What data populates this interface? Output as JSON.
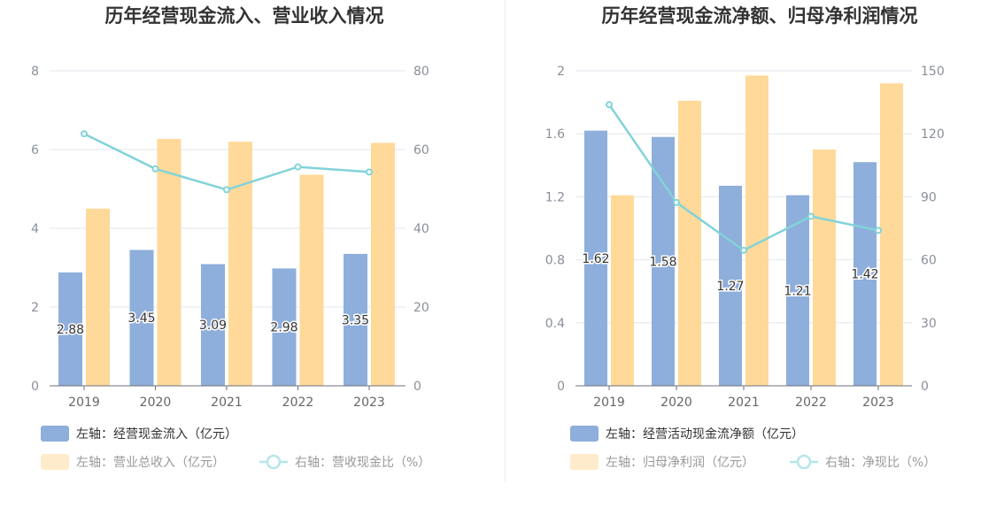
{
  "chart_data": [
    {
      "type": "bar",
      "title": "历年经营现金流入、营业收入情况",
      "categories": [
        "2019",
        "2020",
        "2021",
        "2022",
        "2023"
      ],
      "left_axis": {
        "ylim": [
          0,
          8
        ],
        "ticks": [
          "0",
          "2",
          "4",
          "6",
          "8"
        ]
      },
      "right_axis": {
        "ylim": [
          0,
          80
        ],
        "ticks": [
          "0",
          "20",
          "40",
          "60",
          "80"
        ]
      },
      "series": [
        {
          "name": "左轴：经营现金流入（亿元）",
          "kind": "bar",
          "axis": "left",
          "color": "#8eaedb",
          "values": [
            2.88,
            3.45,
            3.09,
            2.98,
            3.35
          ],
          "labels": [
            "2.88",
            "3.45",
            "3.09",
            "2.98",
            "3.35"
          ]
        },
        {
          "name": "左轴：营业总收入（亿元）",
          "kind": "bar",
          "axis": "left",
          "color": "#ffd99a",
          "values": [
            4.5,
            6.27,
            6.2,
            5.36,
            6.17
          ]
        },
        {
          "name": "右轴：营收现金比（%）",
          "kind": "line",
          "axis": "right",
          "color": "#82d3d8",
          "values": [
            64,
            55.1,
            49.8,
            55.6,
            54.3
          ]
        }
      ]
    },
    {
      "type": "bar",
      "title": "历年经营现金流净额、归母净利润情况",
      "categories": [
        "2019",
        "2020",
        "2021",
        "2022",
        "2023"
      ],
      "left_axis": {
        "ylim": [
          0,
          2
        ],
        "ticks": [
          "0",
          "0.4",
          "0.8",
          "1.2",
          "1.6",
          "2"
        ]
      },
      "right_axis": {
        "ylim": [
          0,
          150
        ],
        "ticks": [
          "0",
          "30",
          "60",
          "90",
          "120",
          "150"
        ]
      },
      "series": [
        {
          "name": "左轴：经营活动现金流净额（亿元）",
          "kind": "bar",
          "axis": "left",
          "color": "#8eaedb",
          "values": [
            1.62,
            1.58,
            1.27,
            1.21,
            1.42
          ],
          "labels": [
            "1.62",
            "1.58",
            "1.27",
            "1.21",
            "1.42"
          ]
        },
        {
          "name": "左轴：归母净利润（亿元）",
          "kind": "bar",
          "axis": "left",
          "color": "#ffd99a",
          "values": [
            1.21,
            1.81,
            1.97,
            1.5,
            1.92
          ]
        },
        {
          "name": "右轴：净现比（%）",
          "kind": "line",
          "axis": "right",
          "color": "#82d3d8",
          "values": [
            133.9,
            87.3,
            64.5,
            80.7,
            74.0
          ]
        }
      ]
    }
  ]
}
